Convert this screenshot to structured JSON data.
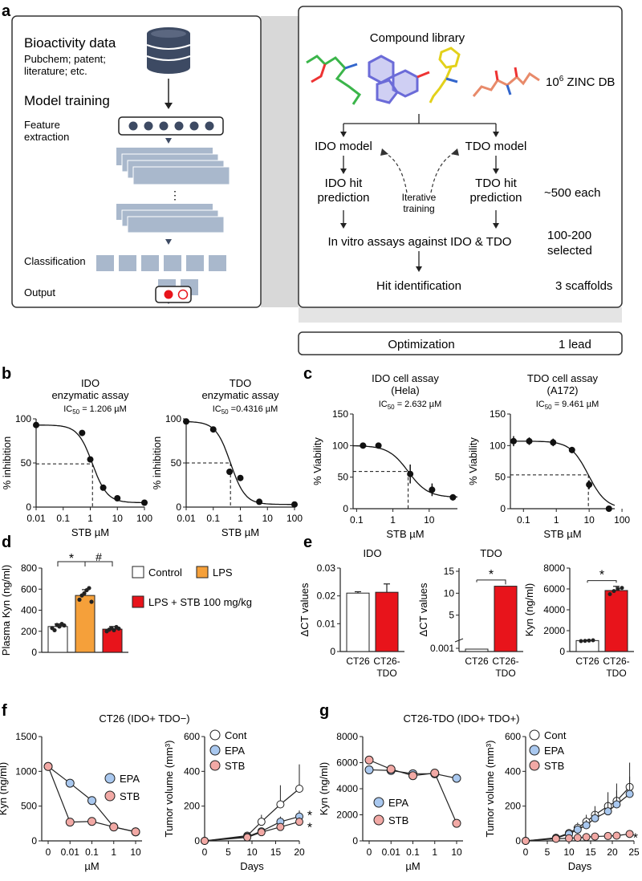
{
  "panel_labels": {
    "a": "a",
    "b": "b",
    "c": "c",
    "d": "d",
    "e": "e",
    "f": "f",
    "g": "g"
  },
  "panel_a": {
    "left": {
      "bioactivity_title": "Bioactivity data",
      "bioactivity_sub1": "Pubchem; patent;",
      "bioactivity_sub2": "literature; etc.",
      "model_training": "Model training",
      "feature1": "Feature",
      "feature2": "extraction",
      "dots": "⋮",
      "classification": "Classification",
      "output": "Output"
    },
    "right": {
      "library": "Compound library",
      "zinc_pre": "10",
      "zinc_sup": "6",
      "zinc_post": " ZINC DB",
      "ido_model": "IDO model",
      "tdo_model": "TDO model",
      "ido_hit1": "IDO hit",
      "ido_hit2": "prediction",
      "tdo_hit1": "TDO hit",
      "tdo_hit2": "prediction",
      "iter1": "Iterative",
      "iter2": "training",
      "each": "~500 each",
      "assays": "In vitro assays against IDO & TDO",
      "selected1": "100-200",
      "selected2": "selected",
      "hit_id": "Hit identification",
      "scaffolds": "3 scaffolds"
    },
    "optimization": "Optimization",
    "lead": "1 lead"
  },
  "colors": {
    "red": "#e8141b",
    "orange": "#f5a03a",
    "blue": "#a9c8ef",
    "pink": "#f2a9a5",
    "grey": "#a9b8cc",
    "navy": "#3d4a63"
  },
  "chart_data": [
    {
      "id": "b1",
      "type": "line",
      "title": "IDO",
      "subtitle": "enzymatic assay",
      "ic50_label": "IC50 = 1.206 µM",
      "ylabel": "% inhibition",
      "xlabel": "STB µM",
      "xscale": "log",
      "xticks": [
        "0.01",
        "0.1",
        "1",
        "10",
        "100"
      ],
      "yticks": [
        "0",
        "50",
        "100"
      ],
      "ylim": [
        0,
        100
      ],
      "x": [
        0.01,
        0.5,
        1,
        3,
        10,
        100
      ],
      "y": [
        93,
        84,
        54,
        22,
        10,
        5
      ],
      "ic50": 1.206
    },
    {
      "id": "b2",
      "type": "line",
      "title": "TDO",
      "subtitle": "enzymatic assay",
      "ic50_label": "IC50 =0.4316 µM",
      "ylabel": "% inhibition",
      "xlabel": "STB µM",
      "xscale": "log",
      "xticks": [
        "0.01",
        "0.1",
        "1",
        "10",
        "100"
      ],
      "yticks": [
        "0",
        "50",
        "100"
      ],
      "ylim": [
        0,
        100
      ],
      "x": [
        0.01,
        0.1,
        0.4,
        1,
        5,
        100
      ],
      "y": [
        97,
        88,
        40,
        33,
        6,
        3
      ],
      "ic50": 0.4316
    },
    {
      "id": "c1",
      "type": "line",
      "title": "IDO cell assay",
      "subtitle": "(Hela)",
      "ic50_label": "IC50 = 2.632 µM",
      "ylabel": "% Viability",
      "xlabel": "STB µM",
      "xscale": "log",
      "xticks": [
        "0.1",
        "1",
        "10"
      ],
      "yticks": [
        "0",
        "50",
        "100",
        "150"
      ],
      "ylim": [
        0,
        150
      ],
      "x": [
        0.15,
        0.4,
        3,
        12,
        45
      ],
      "y": [
        100,
        100,
        55,
        30,
        18
      ],
      "err": [
        0,
        0,
        15,
        10,
        5
      ],
      "ic50": 2.632
    },
    {
      "id": "c2",
      "type": "line",
      "title": "TDO cell assay",
      "subtitle": "(A172)",
      "ic50_label": "IC50 = 9.461 µM",
      "ylabel": "% Viability",
      "xlabel": "STB µM",
      "xscale": "log",
      "xticks": [
        "0.1",
        "1",
        "10",
        "100"
      ],
      "yticks": [
        "0",
        "50",
        "100",
        "150"
      ],
      "ylim": [
        0,
        150
      ],
      "x": [
        0.05,
        0.15,
        0.8,
        3,
        10,
        40
      ],
      "y": [
        107,
        107,
        105,
        93,
        38,
        0
      ],
      "err": [
        8,
        6,
        6,
        5,
        7,
        0
      ],
      "ic50": 9.461
    },
    {
      "id": "d",
      "type": "bar",
      "ylabel": "Plasma Kyn (ng/ml)",
      "yticks": [
        "0",
        "200",
        "400",
        "600",
        "800"
      ],
      "ylim": [
        0,
        800
      ],
      "categories": [
        "Control",
        "LPS",
        "LPS + STB 100 mg/kg"
      ],
      "values": [
        245,
        540,
        220
      ],
      "err": [
        25,
        55,
        25
      ],
      "sig": [
        "*",
        "#"
      ],
      "legend": [
        {
          "label": "Control"
        },
        {
          "label": "LPS"
        },
        {
          "label": "LPS + STB 100 mg/kg"
        }
      ]
    },
    {
      "id": "e1",
      "type": "bar",
      "title": "IDO",
      "ylabel": "ΔCT values",
      "yticks": [
        "0",
        "0.01",
        "0.02",
        "0.03"
      ],
      "ylim": [
        0,
        0.03
      ],
      "categories": [
        "CT26",
        "CT26-TDO"
      ],
      "values": [
        0.021,
        0.0213
      ],
      "err": [
        0.0005,
        0.003
      ]
    },
    {
      "id": "e2",
      "type": "bar",
      "title": "TDO",
      "ylabel": "ΔCT values",
      "yticks": [
        "0.001",
        "5",
        "10",
        "15"
      ],
      "ylim": [
        0,
        15
      ],
      "categories": [
        "CT26",
        "CT26-TDO"
      ],
      "values": [
        0.0005,
        11.6
      ],
      "sig": "*"
    },
    {
      "id": "e3",
      "type": "bar",
      "ylabel": "Kyn (ng/ml)",
      "yticks": [
        "0",
        "2000",
        "4000",
        "6000",
        "8000"
      ],
      "ylim": [
        0,
        8000
      ],
      "categories": [
        "CT26",
        "CT26-TDO"
      ],
      "values": [
        1050,
        5850
      ],
      "err": [
        60,
        400
      ],
      "sig": "*"
    },
    {
      "id": "f1",
      "type": "line",
      "title": "CT26 (IDO+ TDO−)",
      "ylabel": "Kyn (ng/ml)",
      "xlabel": "µM",
      "xticks": [
        "0",
        "0.01",
        "0.1",
        "1",
        "10"
      ],
      "yticks": [
        "0",
        "500",
        "1000",
        "1500"
      ],
      "ylim": [
        0,
        1500
      ],
      "series": [
        {
          "name": "EPA",
          "values": [
            1070,
            830,
            580,
            200,
            130
          ]
        },
        {
          "name": "STB",
          "values": [
            1070,
            270,
            280,
            200,
            130
          ]
        }
      ]
    },
    {
      "id": "f2",
      "type": "line",
      "ylabel": "Tumor volume (mm³)",
      "xlabel": "Days",
      "xticks": [
        "0",
        "5",
        "10",
        "15",
        "20"
      ],
      "yticks": [
        "0",
        "200",
        "400",
        "600"
      ],
      "ylim": [
        0,
        600
      ],
      "x": [
        0,
        9,
        12,
        16,
        20
      ],
      "series": [
        {
          "name": "Cont",
          "values": [
            0,
            30,
            110,
            210,
            300
          ],
          "err": [
            0,
            15,
            40,
            110,
            140
          ]
        },
        {
          "name": "EPA",
          "values": [
            0,
            25,
            55,
            110,
            140
          ],
          "err": [
            0,
            10,
            20,
            30,
            35
          ]
        },
        {
          "name": "STB",
          "values": [
            0,
            20,
            50,
            80,
            110
          ],
          "err": [
            0,
            8,
            15,
            20,
            25
          ]
        }
      ],
      "sig": [
        "*",
        "*"
      ]
    },
    {
      "id": "g1",
      "type": "line",
      "title": "CT26-TDO (IDO+ TDO+)",
      "ylabel": "Kyn (ng/ml)",
      "xlabel": "µM",
      "xticks": [
        "0",
        "0.01",
        "0.1",
        "1",
        "10"
      ],
      "yticks": [
        "0",
        "2000",
        "4000",
        "6000",
        "8000"
      ],
      "ylim": [
        0,
        8000
      ],
      "series": [
        {
          "name": "EPA",
          "values": [
            5450,
            5400,
            5150,
            5150,
            4800
          ]
        },
        {
          "name": "STB",
          "values": [
            6200,
            5500,
            5000,
            5200,
            1350
          ]
        }
      ]
    },
    {
      "id": "g2",
      "type": "line",
      "ylabel": "Tumor volume (mm³)",
      "xlabel": "Days",
      "xticks": [
        "0",
        "5",
        "10",
        "15",
        "20",
        "25"
      ],
      "yticks": [
        "0",
        "200",
        "400",
        "600"
      ],
      "ylim": [
        0,
        600
      ],
      "x": [
        0,
        7,
        10,
        12,
        14,
        16,
        19,
        21,
        24
      ],
      "series": [
        {
          "name": "Cont",
          "values": [
            0,
            18,
            45,
            75,
            110,
            150,
            200,
            230,
            310
          ],
          "err": [
            0,
            8,
            20,
            30,
            40,
            50,
            80,
            100,
            140
          ]
        },
        {
          "name": "EPA",
          "values": [
            0,
            15,
            40,
            65,
            90,
            130,
            170,
            210,
            270
          ],
          "err": [
            0,
            6,
            15,
            25,
            30,
            40,
            60,
            80,
            100
          ]
        },
        {
          "name": "STB",
          "values": [
            0,
            12,
            15,
            18,
            22,
            25,
            28,
            30,
            40
          ],
          "err": [
            0,
            4,
            5,
            5,
            6,
            6,
            6,
            7,
            8
          ]
        }
      ],
      "sig": [
        "*"
      ]
    }
  ]
}
